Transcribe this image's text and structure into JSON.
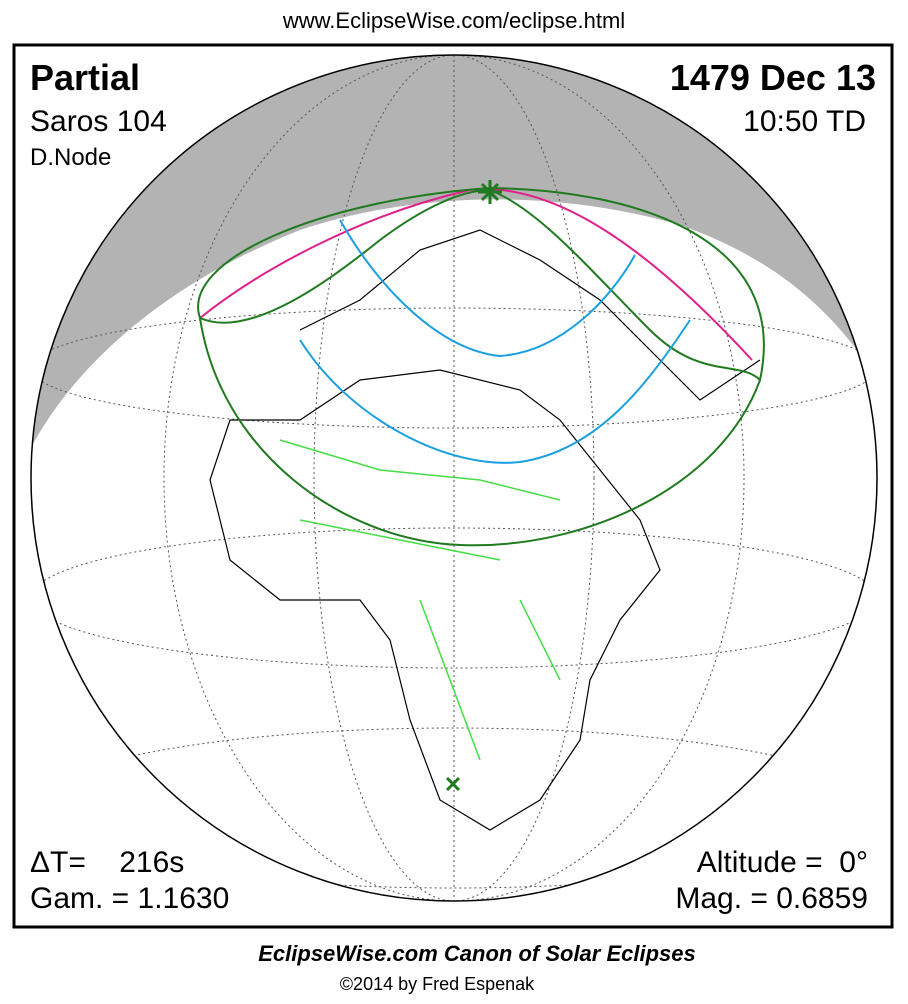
{
  "header": {
    "url": "www.EclipseWise.com/eclipse.html"
  },
  "panel": {
    "eclipse_type": "Partial",
    "saros": "Saros 104",
    "node": "D.Node",
    "date": "1479 Dec 13",
    "time": "10:50 TD",
    "delta_t": "ΔT=    216s",
    "gamma": "Gam. = 1.1630",
    "altitude": "Altitude =  0°",
    "magnitude": "Mag. = 0.6859"
  },
  "footer": {
    "title": "EclipseWise.com Canon of Solar Eclipses",
    "credit": "©2014 by Fred Espenak"
  }
}
